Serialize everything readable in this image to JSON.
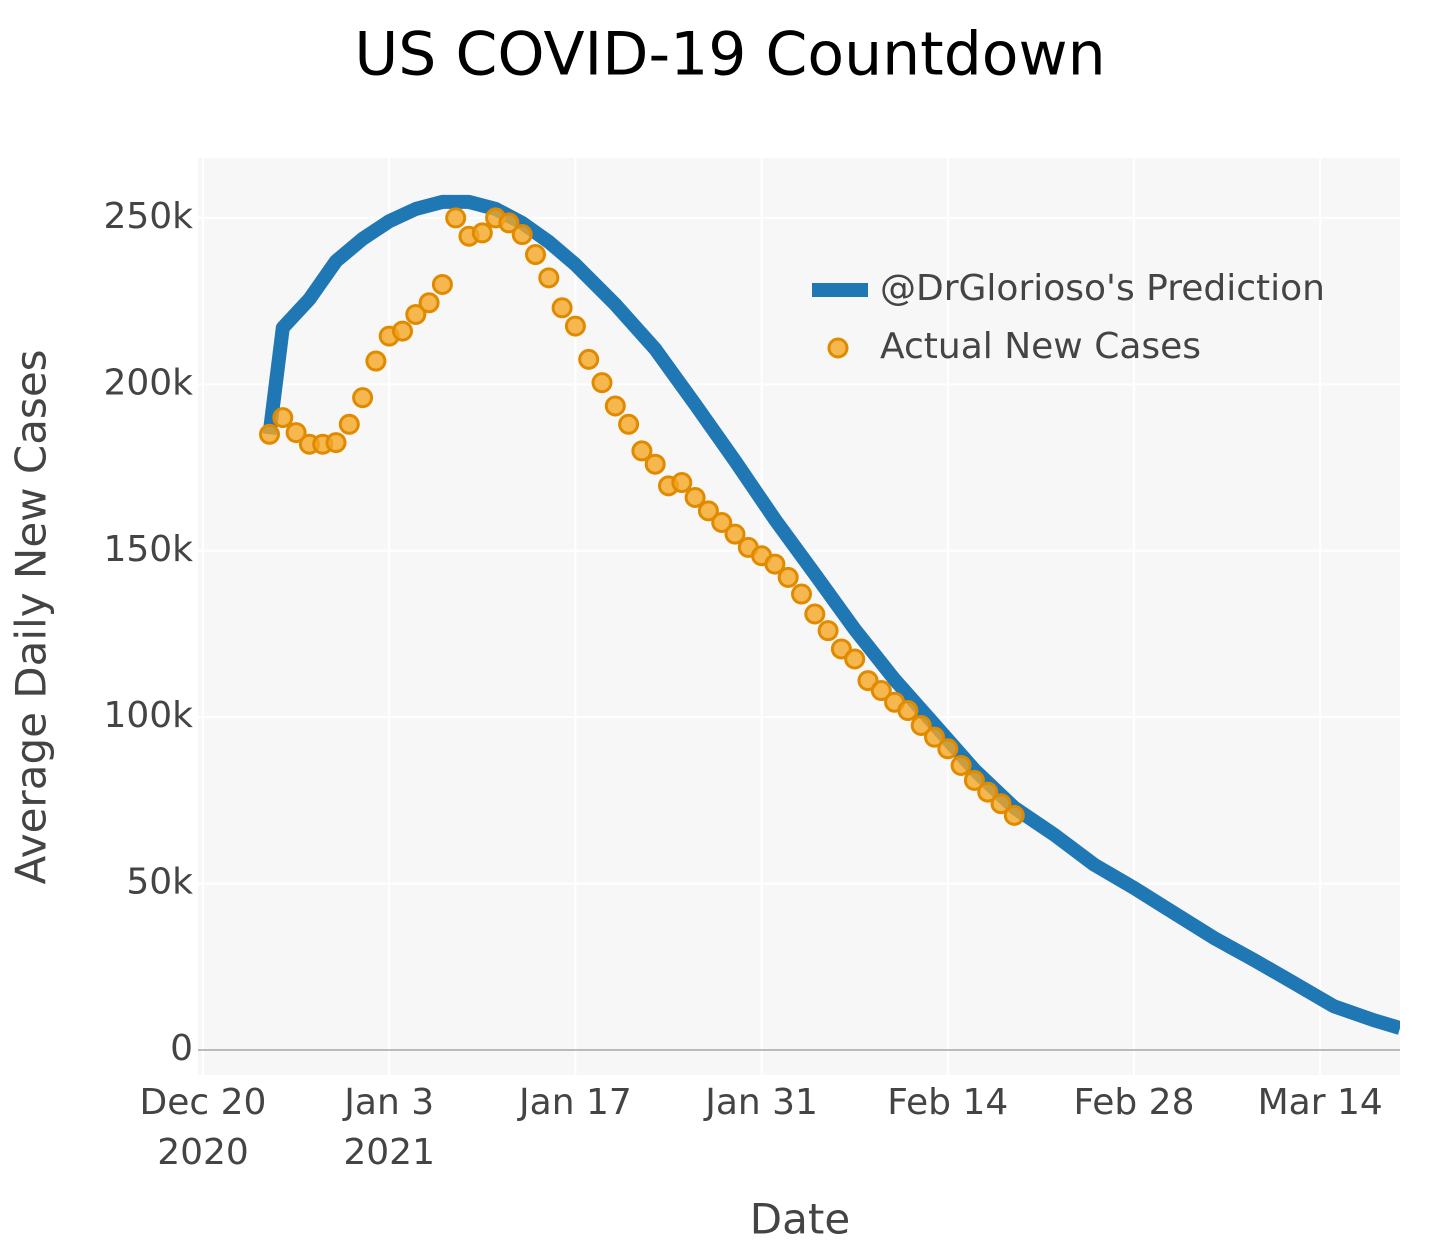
{
  "chart_data": {
    "type": "line",
    "title": "US COVID-19 Countdown",
    "x_label": "Date",
    "y_label": "Average Daily New Cases",
    "xlim": [
      "2020-12-20",
      "2021-03-20"
    ],
    "ylim": [
      -7500,
      268000
    ],
    "xticks": [
      {
        "value": "2020-12-20",
        "label": "Dec 20\n2020"
      },
      {
        "value": "2021-01-03",
        "label": "Jan 3\n2021"
      },
      {
        "value": "2021-01-17",
        "label": "Jan 17"
      },
      {
        "value": "2021-01-31",
        "label": "Jan 31"
      },
      {
        "value": "2021-02-14",
        "label": "Feb 14"
      },
      {
        "value": "2021-02-28",
        "label": "Feb 28"
      },
      {
        "value": "2021-03-14",
        "label": "Mar 14"
      }
    ],
    "yticks": [
      0,
      {
        "value": 50000,
        "label": "50k"
      },
      {
        "value": 100000,
        "label": "100k"
      },
      {
        "value": 150000,
        "label": "150k"
      },
      {
        "value": 200000,
        "label": "200k"
      },
      {
        "value": 250000,
        "label": "250k"
      }
    ],
    "grid": true,
    "legend": "top-right",
    "series": [
      {
        "name": "@DrGlorioso's Prediction",
        "mode": "line",
        "color": "#1f77b4",
        "x": [
          "2020-12-25",
          "2020-12-26",
          "2020-12-28",
          "2020-12-30",
          "2021-01-01",
          "2021-01-03",
          "2021-01-05",
          "2021-01-07",
          "2021-01-09",
          "2021-01-11",
          "2021-01-13",
          "2021-01-15",
          "2021-01-17",
          "2021-01-20",
          "2021-01-23",
          "2021-01-26",
          "2021-01-29",
          "2021-02-01",
          "2021-02-04",
          "2021-02-07",
          "2021-02-10",
          "2021-02-13",
          "2021-02-16",
          "2021-02-19",
          "2021-02-22",
          "2021-02-25",
          "2021-02-28",
          "2021-03-03",
          "2021-03-06",
          "2021-03-09",
          "2021-03-12",
          "2021-03-15",
          "2021-03-18",
          "2021-03-20"
        ],
        "values": [
          185000,
          217000,
          225600,
          237000,
          243700,
          249000,
          252700,
          254800,
          254800,
          252700,
          248500,
          242800,
          236000,
          224000,
          210600,
          194000,
          177000,
          159400,
          143000,
          126400,
          111300,
          97800,
          84200,
          72800,
          64700,
          55700,
          48700,
          41200,
          33700,
          27100,
          20200,
          13200,
          9000,
          6600
        ]
      },
      {
        "name": "Actual New Cases",
        "mode": "markers",
        "color": "#f5a623",
        "x": [
          "2020-12-25",
          "2020-12-26",
          "2020-12-27",
          "2020-12-28",
          "2020-12-29",
          "2020-12-30",
          "2020-12-31",
          "2021-01-01",
          "2021-01-02",
          "2021-01-03",
          "2021-01-04",
          "2021-01-05",
          "2021-01-06",
          "2021-01-07",
          "2021-01-08",
          "2021-01-09",
          "2021-01-10",
          "2021-01-11",
          "2021-01-12",
          "2021-01-13",
          "2021-01-14",
          "2021-01-15",
          "2021-01-16",
          "2021-01-17",
          "2021-01-18",
          "2021-01-19",
          "2021-01-20",
          "2021-01-21",
          "2021-01-22",
          "2021-01-23",
          "2021-01-24",
          "2021-01-25",
          "2021-01-26",
          "2021-01-27",
          "2021-01-28",
          "2021-01-29",
          "2021-01-30",
          "2021-01-31",
          "2021-02-01",
          "2021-02-02",
          "2021-02-03",
          "2021-02-04",
          "2021-02-05",
          "2021-02-06",
          "2021-02-07",
          "2021-02-08",
          "2021-02-09",
          "2021-02-10",
          "2021-02-11",
          "2021-02-12",
          "2021-02-13",
          "2021-02-14",
          "2021-02-15",
          "2021-02-16",
          "2021-02-17",
          "2021-02-18",
          "2021-02-19"
        ],
        "values": [
          185000,
          190000,
          185500,
          182000,
          182000,
          182500,
          188000,
          196000,
          207000,
          214500,
          216000,
          221000,
          224500,
          230000,
          250000,
          244500,
          245500,
          250000,
          248500,
          245000,
          239000,
          232000,
          223000,
          217500,
          207500,
          200500,
          193500,
          188000,
          180000,
          176000,
          169500,
          170500,
          166000,
          162000,
          158500,
          155000,
          151000,
          148500,
          146000,
          142000,
          137000,
          131000,
          126000,
          120500,
          117500,
          111000,
          108000,
          104500,
          102000,
          97500,
          94000,
          90500,
          85500,
          81000,
          77500,
          74000,
          70500
        ]
      }
    ]
  }
}
